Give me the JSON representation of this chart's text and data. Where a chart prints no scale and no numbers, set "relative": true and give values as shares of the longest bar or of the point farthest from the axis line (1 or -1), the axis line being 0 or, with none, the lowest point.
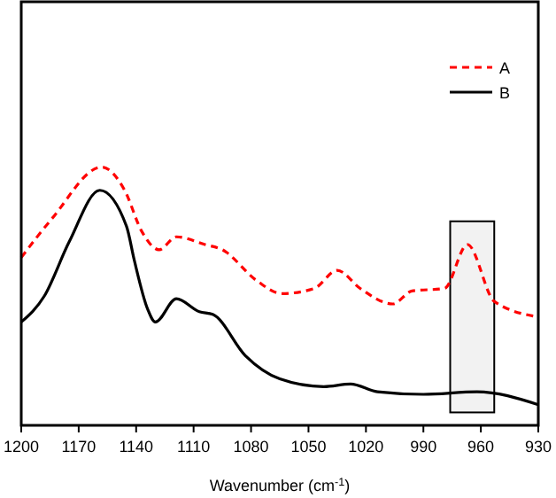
{
  "chart_data": {
    "type": "line",
    "xlabel": "Wavenumber (cm$^{-1}$)",
    "relative": true,
    "xlim": [
      1200,
      930
    ],
    "xticks": [
      1200,
      1170,
      1140,
      1110,
      1080,
      1050,
      1020,
      990,
      960,
      930
    ],
    "legend": "top right",
    "series": [
      {
        "name": "A",
        "color": "#ff0000",
        "line_style": "dashed",
        "x": [
          1200,
          1184,
          1158,
          1146,
          1137,
          1128,
          1119,
          1104,
          1095,
          1077,
          1064,
          1047,
          1035,
          1023,
          1006,
          996,
          979,
          967,
          953,
          930
        ],
        "values": [
          0.65,
          0.8,
          1.0,
          0.91,
          0.75,
          0.68,
          0.73,
          0.7,
          0.68,
          0.56,
          0.51,
          0.53,
          0.6,
          0.53,
          0.47,
          0.52,
          0.53,
          0.7,
          0.48,
          0.42
        ]
      },
      {
        "name": "B",
        "color": "#000000",
        "line_style": "solid",
        "x": [
          1200,
          1188,
          1175,
          1159,
          1145,
          1141,
          1134,
          1130,
          1119,
          1107,
          1100,
          1083,
          1065,
          1042,
          1028,
          1014,
          990,
          962,
          930
        ],
        "values": [
          0.4,
          0.5,
          0.71,
          0.91,
          0.77,
          0.64,
          0.45,
          0.4,
          0.49,
          0.44,
          0.43,
          0.27,
          0.18,
          0.15,
          0.16,
          0.13,
          0.12,
          0.13,
          0.08
        ]
      }
    ],
    "bands": [
      {
        "axis": "x",
        "from": 976,
        "to": 953,
        "color": "#000000"
      }
    ]
  }
}
